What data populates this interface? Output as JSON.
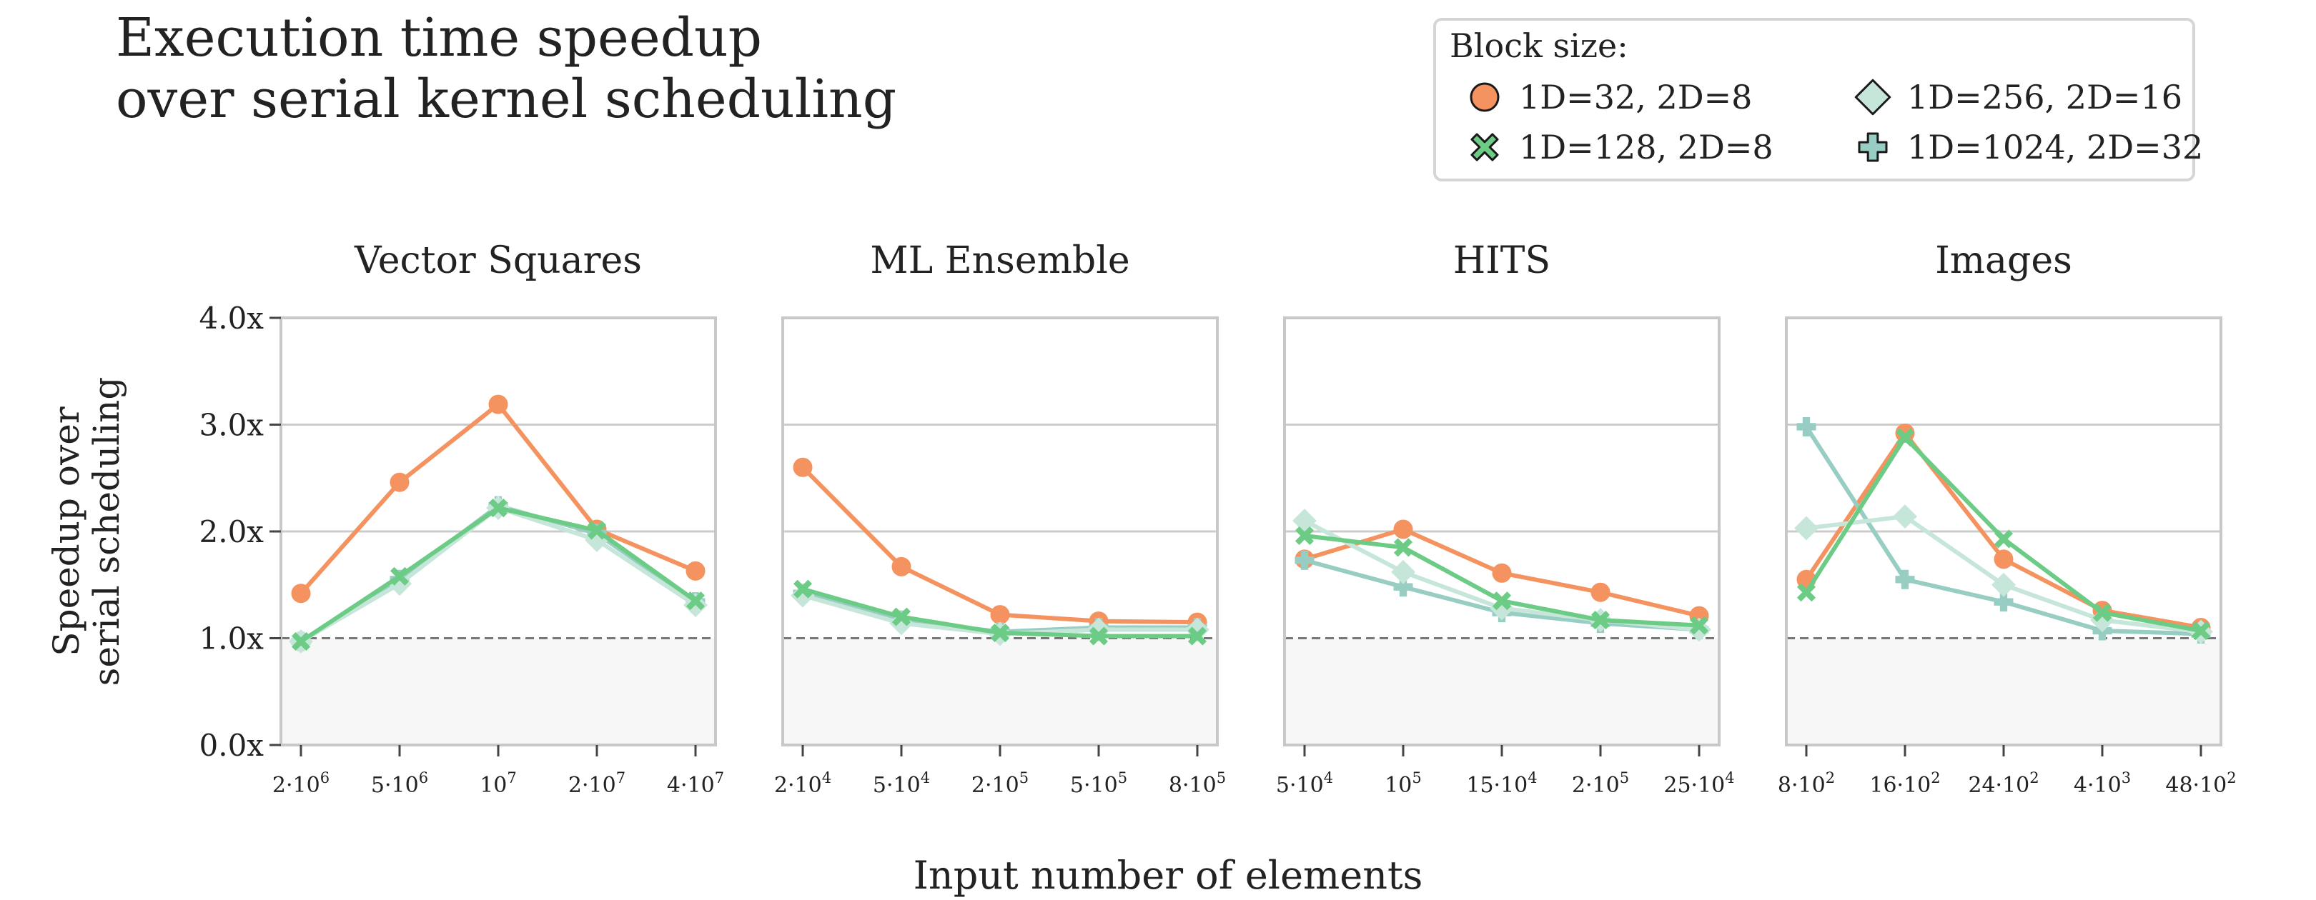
{
  "figure": {
    "title_line1": "Execution time speedup",
    "title_line2": "over serial kernel scheduling",
    "ylabel_line1": "Speedup over",
    "ylabel_line2": "serial scheduling",
    "xlabel": "Input number of elements"
  },
  "legend": {
    "title": "Block size:",
    "entries": [
      {
        "label": "1D=32, 2D=8",
        "marker": "circle",
        "color": "#F4935F"
      },
      {
        "label": "1D=256, 2D=16",
        "marker": "diamond",
        "color": "#C6E6DA"
      },
      {
        "label": "1D=128, 2D=8",
        "marker": "x",
        "color": "#6CCB85"
      },
      {
        "label": "1D=1024, 2D=32",
        "marker": "plus",
        "color": "#97CDC3"
      }
    ]
  },
  "chart_data": [
    {
      "type": "line",
      "title": "Vector Squares",
      "categories": [
        "2·10^6",
        "5·10^6",
        "10^7",
        "2·10^7",
        "4·10^7"
      ],
      "ylim": [
        0,
        4
      ],
      "yticks": [
        "0.0x",
        "1.0x",
        "2.0x",
        "3.0x",
        "4.0x"
      ],
      "reference_line": 1.0,
      "series": [
        {
          "name": "1D=32, 2D=8",
          "values": [
            1.42,
            2.46,
            3.19,
            2.02,
            1.63
          ]
        },
        {
          "name": "1D=128, 2D=8",
          "values": [
            0.97,
            1.58,
            2.22,
            2.01,
            1.35
          ]
        },
        {
          "name": "1D=256, 2D=16",
          "values": [
            0.97,
            1.51,
            2.22,
            1.92,
            1.31
          ]
        },
        {
          "name": "1D=1024, 2D=32",
          "values": [
            0.97,
            1.55,
            2.24,
            1.98,
            1.34
          ]
        }
      ]
    },
    {
      "type": "line",
      "title": "ML Ensemble",
      "categories": [
        "2·10^4",
        "5·10^4",
        "2·10^5",
        "5·10^5",
        "8·10^5"
      ],
      "ylim": [
        0,
        4
      ],
      "reference_line": 1.0,
      "series": [
        {
          "name": "1D=32, 2D=8",
          "values": [
            2.6,
            1.67,
            1.22,
            1.16,
            1.15
          ]
        },
        {
          "name": "1D=128, 2D=8",
          "values": [
            1.46,
            1.2,
            1.05,
            1.02,
            1.02
          ]
        },
        {
          "name": "1D=256, 2D=16",
          "values": [
            1.4,
            1.14,
            1.04,
            1.08,
            1.08
          ]
        },
        {
          "name": "1D=1024, 2D=32",
          "values": [
            1.42,
            1.17,
            1.06,
            1.1,
            1.1
          ]
        }
      ]
    },
    {
      "type": "line",
      "title": "HITS",
      "categories": [
        "5·10^4",
        "10^5",
        "15·10^4",
        "2·10^5",
        "25·10^4"
      ],
      "ylim": [
        0,
        4
      ],
      "reference_line": 1.0,
      "series": [
        {
          "name": "1D=32, 2D=8",
          "values": [
            1.74,
            2.02,
            1.61,
            1.43,
            1.21
          ]
        },
        {
          "name": "1D=128, 2D=8",
          "values": [
            1.96,
            1.85,
            1.35,
            1.17,
            1.12
          ]
        },
        {
          "name": "1D=256, 2D=16",
          "values": [
            2.1,
            1.62,
            1.28,
            1.17,
            1.08
          ]
        },
        {
          "name": "1D=1024, 2D=32",
          "values": [
            1.73,
            1.48,
            1.24,
            1.14,
            1.08
          ]
        }
      ]
    },
    {
      "type": "line",
      "title": "Images",
      "categories": [
        "8·10^2",
        "16·10^2",
        "24·10^2",
        "4·10^3",
        "48·10^2"
      ],
      "ylim": [
        0,
        4
      ],
      "reference_line": 1.0,
      "series": [
        {
          "name": "1D=32, 2D=8",
          "values": [
            1.55,
            2.92,
            1.74,
            1.26,
            1.1
          ]
        },
        {
          "name": "1D=128, 2D=8",
          "values": [
            1.43,
            2.88,
            1.93,
            1.24,
            1.07
          ]
        },
        {
          "name": "1D=256, 2D=16",
          "values": [
            2.03,
            2.14,
            1.5,
            1.17,
            1.06
          ]
        },
        {
          "name": "1D=1024, 2D=32",
          "values": [
            2.98,
            1.55,
            1.34,
            1.07,
            1.04
          ]
        }
      ]
    }
  ]
}
